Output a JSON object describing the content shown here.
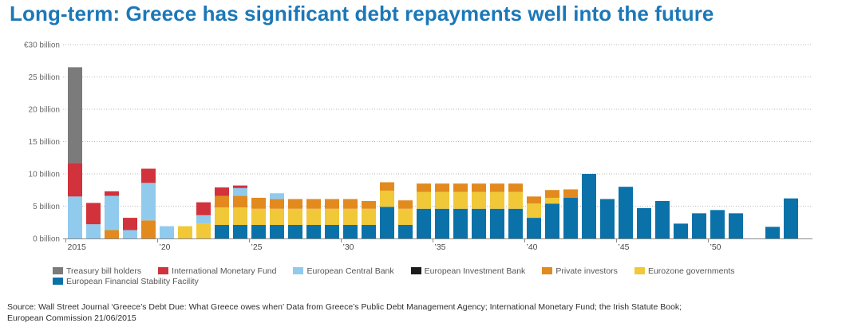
{
  "title": "Long-term: Greece has significant debt repayments well into the future",
  "source_line1": "Source: Wall Street Journal ‘Greece’s Debt Due: What Greece owes when’ Data from Greece’s Public Debt Management Agency; International Monetary Fund; the Irish Statute Book;",
  "source_line2": "European Commission 21/06/2015",
  "chart_data": {
    "type": "bar",
    "stacked": true,
    "title": "Long-term: Greece has significant debt repayments well into the future",
    "xlabel": "",
    "ylabel": "",
    "ylim": [
      0,
      30
    ],
    "grid": "horizontal dotted",
    "legend_position": "bottom",
    "yticks": [
      {
        "value": 0,
        "label": "0 billion"
      },
      {
        "value": 5,
        "label": "5 billion"
      },
      {
        "value": 10,
        "label": "10 billion"
      },
      {
        "value": 15,
        "label": "15 billion"
      },
      {
        "value": 20,
        "label": "20 billion"
      },
      {
        "value": 25,
        "label": "25 billion"
      },
      {
        "value": 30,
        "label": "€30 billion"
      }
    ],
    "xticks": [
      {
        "year": 2015,
        "label": "2015"
      },
      {
        "year": 2020,
        "label": "’20"
      },
      {
        "year": 2025,
        "label": "’25"
      },
      {
        "year": 2030,
        "label": "’30"
      },
      {
        "year": 2035,
        "label": "’35"
      },
      {
        "year": 2040,
        "label": "’40"
      },
      {
        "year": 2045,
        "label": "’45"
      },
      {
        "year": 2050,
        "label": "’50"
      }
    ],
    "categories": [
      2015,
      2016,
      2017,
      2018,
      2019,
      2020,
      2021,
      2022,
      2023,
      2024,
      2025,
      2026,
      2027,
      2028,
      2029,
      2030,
      2031,
      2032,
      2033,
      2034,
      2035,
      2036,
      2037,
      2038,
      2039,
      2040,
      2041,
      2042,
      2043,
      2044,
      2045,
      2046,
      2047,
      2048,
      2049,
      2050,
      2051,
      2052,
      2053,
      2054
    ],
    "series": [
      {
        "name": "European Financial Stability Facility",
        "color": "#0a72a8",
        "values": [
          0,
          0,
          0,
          0,
          0,
          0,
          0,
          0,
          2.1,
          2.1,
          2.1,
          2.1,
          2.1,
          2.1,
          2.1,
          2.1,
          2.1,
          4.9,
          2.1,
          4.6,
          4.6,
          4.6,
          4.6,
          4.6,
          4.6,
          3.2,
          5.4,
          6.3,
          10.0,
          6.1,
          8.0,
          4.7,
          5.8,
          2.3,
          3.9,
          4.4,
          3.9,
          0,
          1.8,
          6.2
        ]
      },
      {
        "name": "Eurozone governments",
        "color": "#f0c838",
        "values": [
          0,
          0,
          0,
          0,
          0,
          0,
          1.9,
          2.3,
          2.7,
          2.7,
          2.5,
          2.5,
          2.5,
          2.5,
          2.5,
          2.5,
          2.5,
          2.5,
          2.5,
          2.6,
          2.6,
          2.6,
          2.6,
          2.6,
          2.6,
          2.2,
          0.9,
          0,
          0,
          0,
          0,
          0,
          0,
          0,
          0,
          0,
          0,
          0,
          0,
          0
        ]
      },
      {
        "name": "Private investors",
        "color": "#e28a1e",
        "values": [
          0,
          0,
          1.3,
          0,
          2.8,
          0,
          0,
          0,
          1.8,
          1.8,
          1.7,
          1.5,
          1.5,
          1.5,
          1.5,
          1.5,
          1.2,
          1.3,
          1.3,
          1.3,
          1.3,
          1.3,
          1.3,
          1.3,
          1.3,
          1.1,
          1.2,
          1.3,
          0,
          0,
          0,
          0,
          0,
          0,
          0,
          0,
          0,
          0,
          0,
          0
        ]
      },
      {
        "name": "European Central Bank",
        "color": "#90cbee",
        "values": [
          6.5,
          2.2,
          5.3,
          1.3,
          5.8,
          1.9,
          0,
          1.3,
          0,
          1.2,
          0,
          0.9,
          0,
          0,
          0,
          0,
          0,
          0,
          0,
          0,
          0,
          0,
          0,
          0,
          0,
          0,
          0,
          0,
          0,
          0,
          0,
          0,
          0,
          0,
          0,
          0,
          0,
          0,
          0,
          0
        ]
      },
      {
        "name": "European Investment Bank",
        "color": "#1c1c1c",
        "values": [
          0,
          0,
          0,
          0,
          0,
          0,
          0,
          0,
          0,
          0,
          0,
          0,
          0,
          0,
          0,
          0,
          0,
          0,
          0,
          0,
          0,
          0,
          0,
          0,
          0,
          0,
          0,
          0,
          0,
          0,
          0,
          0,
          0,
          0,
          0,
          0,
          0,
          0,
          0,
          0
        ]
      },
      {
        "name": "International Monetary Fund",
        "color": "#d1323c",
        "values": [
          5.2,
          3.3,
          0.7,
          1.9,
          2.2,
          0,
          0,
          2.0,
          1.3,
          0.4,
          0,
          0,
          0,
          0,
          0,
          0,
          0,
          0,
          0,
          0,
          0,
          0,
          0,
          0,
          0,
          0,
          0,
          0,
          0,
          0,
          0,
          0,
          0,
          0,
          0,
          0,
          0,
          0,
          0,
          0
        ]
      },
      {
        "name": "Treasury bill holders",
        "color": "#7b7b7b",
        "values": [
          14.8,
          0,
          0,
          0,
          0,
          0,
          0,
          0,
          0,
          0,
          0,
          0,
          0,
          0,
          0,
          0,
          0,
          0,
          0,
          0,
          0,
          0,
          0,
          0,
          0,
          0,
          0,
          0,
          0,
          0,
          0,
          0,
          0,
          0,
          0,
          0,
          0,
          0,
          0,
          0
        ]
      }
    ],
    "legend": [
      [
        "Treasury bill holders",
        "International Monetary Fund",
        "European Central Bank",
        "European Investment Bank",
        "Private investors",
        "Eurozone governments"
      ],
      [
        "European Financial Stability Facility"
      ]
    ]
  }
}
